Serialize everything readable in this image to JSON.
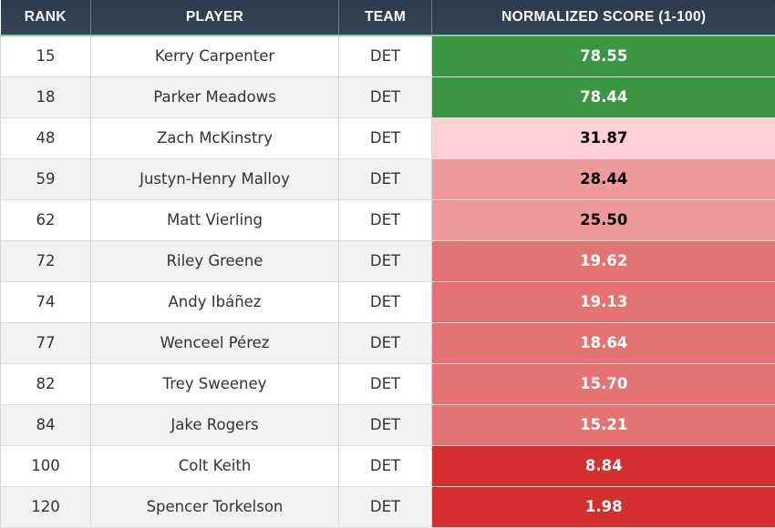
{
  "table": {
    "headers": {
      "rank": "RANK",
      "player": "PLAYER",
      "team": "TEAM",
      "score": "NORMALIZED SCORE (1-100)"
    },
    "rows": [
      {
        "rank": "15",
        "player": "Kerry Carpenter",
        "team": "DET",
        "score": "78.55",
        "score_bg": "#3a9642",
        "score_fg": "#ffffff"
      },
      {
        "rank": "18",
        "player": "Parker Meadows",
        "team": "DET",
        "score": "78.44",
        "score_bg": "#3a9642",
        "score_fg": "#ffffff"
      },
      {
        "rank": "48",
        "player": "Zach McKinstry",
        "team": "DET",
        "score": "31.87",
        "score_bg": "#fdd0d5",
        "score_fg": "#000000"
      },
      {
        "rank": "59",
        "player": "Justyn-Henry Malloy",
        "team": "DET",
        "score": "28.44",
        "score_bg": "#ee9a9b",
        "score_fg": "#000000"
      },
      {
        "rank": "62",
        "player": "Matt Vierling",
        "team": "DET",
        "score": "25.50",
        "score_bg": "#ee9a9b",
        "score_fg": "#000000"
      },
      {
        "rank": "72",
        "player": "Riley Greene",
        "team": "DET",
        "score": "19.62",
        "score_bg": "#e57373",
        "score_fg": "#ffffff"
      },
      {
        "rank": "74",
        "player": "Andy Ibáñez",
        "team": "DET",
        "score": "19.13",
        "score_bg": "#e57373",
        "score_fg": "#ffffff"
      },
      {
        "rank": "77",
        "player": "Wenceel Pérez",
        "team": "DET",
        "score": "18.64",
        "score_bg": "#e57373",
        "score_fg": "#ffffff"
      },
      {
        "rank": "82",
        "player": "Trey Sweeney",
        "team": "DET",
        "score": "15.70",
        "score_bg": "#e57373",
        "score_fg": "#ffffff"
      },
      {
        "rank": "84",
        "player": "Jake Rogers",
        "team": "DET",
        "score": "15.21",
        "score_bg": "#e57373",
        "score_fg": "#ffffff"
      },
      {
        "rank": "100",
        "player": "Colt Keith",
        "team": "DET",
        "score": "8.84",
        "score_bg": "#d32f2f",
        "score_fg": "#ffffff"
      },
      {
        "rank": "120",
        "player": "Spencer Torkelson",
        "team": "DET",
        "score": "1.98",
        "score_bg": "#d32f2f",
        "score_fg": "#ffffff"
      }
    ]
  }
}
